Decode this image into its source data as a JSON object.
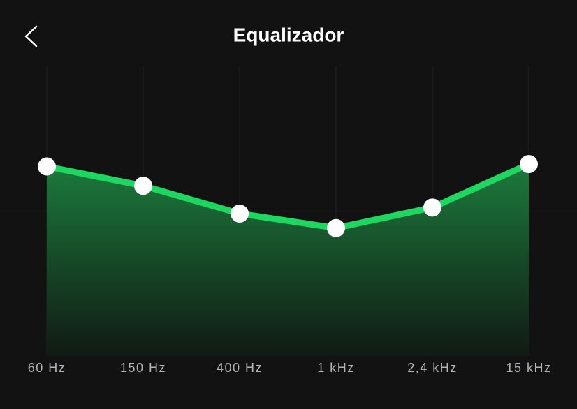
{
  "chart_data": {
    "type": "line",
    "title": "Equalizador",
    "categories": [
      "60 Hz",
      "150 Hz",
      "400 Hz",
      "1 kHz",
      "2,4 kHz",
      "15 kHz"
    ],
    "values": [
      3.7,
      2.1,
      -0.2,
      -1.4,
      0.3,
      3.9
    ],
    "color": "#1ed760",
    "ylim": [
      -12,
      12
    ],
    "grid": true
  }
}
